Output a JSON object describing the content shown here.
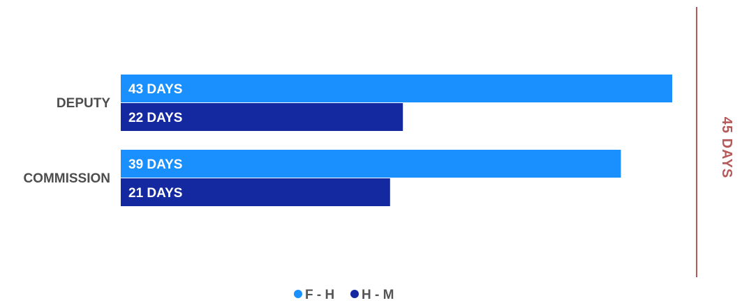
{
  "chart_data": {
    "type": "bar",
    "orientation": "horizontal",
    "categories": [
      "DEPUTY",
      "COMMISSION"
    ],
    "series": [
      {
        "name": "F - H",
        "values": [
          43,
          39
        ],
        "labels": [
          "43 DAYS",
          "39 DAYS"
        ],
        "color": "#1a90ff"
      },
      {
        "name": "H - M",
        "values": [
          22,
          21
        ],
        "labels": [
          "22 DAYS",
          "21 DAYS"
        ],
        "color": "#1428a0"
      }
    ],
    "xlim": [
      0,
      45
    ],
    "grid": false,
    "legend": "bottom-center",
    "reference_line": {
      "value": 45,
      "label": "45 DAYS",
      "color": "#b5595a"
    }
  }
}
